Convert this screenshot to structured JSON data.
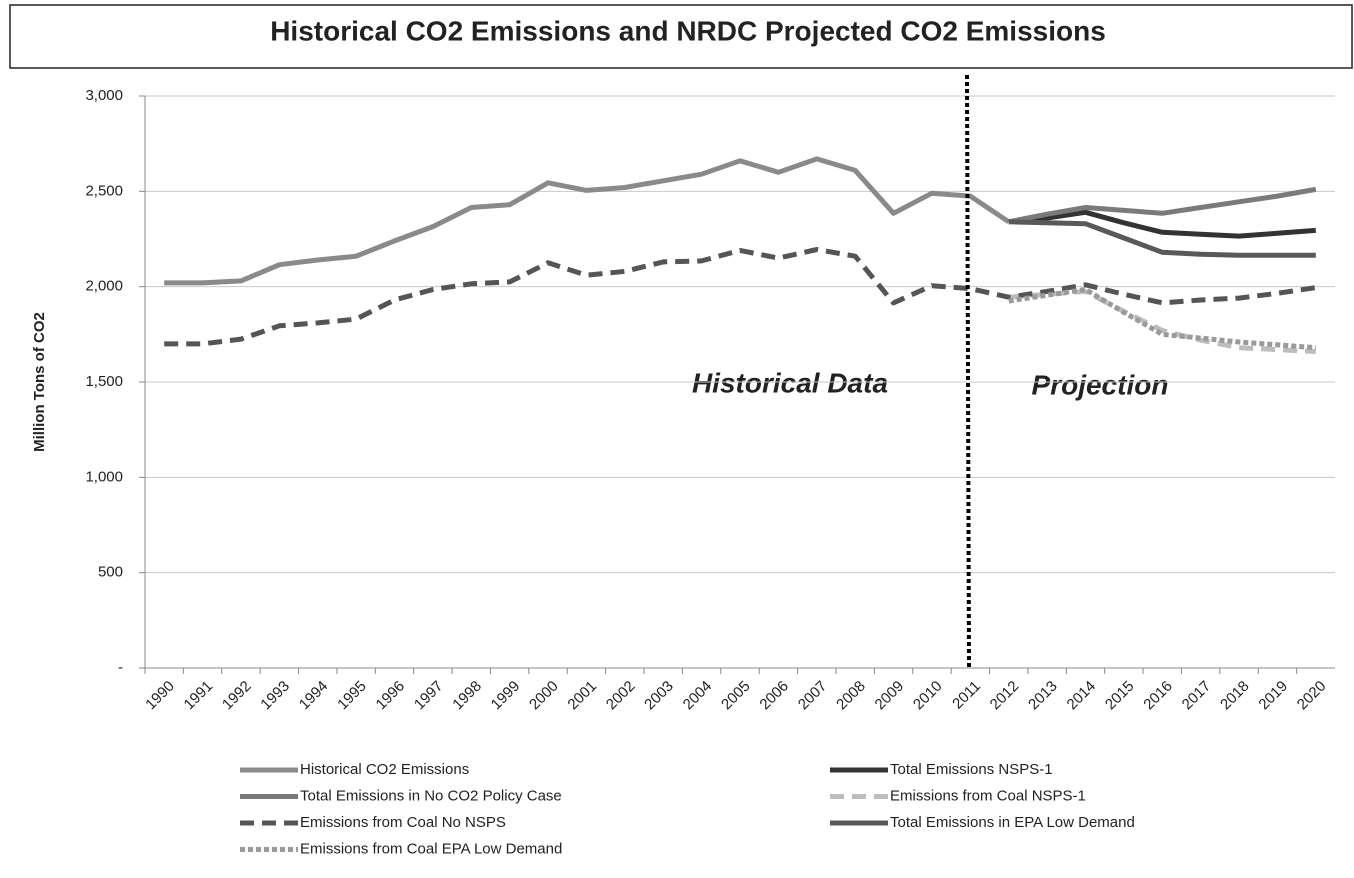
{
  "chart_data": {
    "type": "line",
    "title": "Historical  CO2 Emissions and NRDC Projected CO2 Emissions",
    "y_label": "Million Tons of CO2",
    "annotations": [
      "Historical Data",
      "Projection"
    ],
    "categories": [
      "1990",
      "1991",
      "1992",
      "1993",
      "1994",
      "1995",
      "1996",
      "1997",
      "1998",
      "1999",
      "2000",
      "2001",
      "2002",
      "2003",
      "2004",
      "2005",
      "2006",
      "2007",
      "2008",
      "2009",
      "2010",
      "2011",
      "2012",
      "2013",
      "2014",
      "2015",
      "2016",
      "2017",
      "2018",
      "2019",
      "2020"
    ],
    "ylim": [
      0,
      3000
    ],
    "yticks": [
      {
        "value": 0,
        "label": "-"
      },
      500,
      {
        "value": 1000,
        "label": "1,000"
      },
      {
        "value": 1500,
        "label": "1,500"
      },
      {
        "value": 2000,
        "label": "2,000"
      },
      {
        "value": 2500,
        "label": "2,500"
      },
      {
        "value": 3000,
        "label": "3,000"
      }
    ],
    "grid": true,
    "legend": "bottom",
    "series": [
      {
        "name": "Historical CO2 Emissions",
        "color": "#8a8a8a",
        "dash": "solid",
        "values": [
          2020,
          2020,
          2030,
          2115,
          2140,
          2160,
          2240,
          2315,
          2415,
          2430,
          2545,
          2505,
          2520,
          2555,
          2590,
          2660,
          2600,
          2670,
          2610,
          2385,
          2490,
          2475,
          2340,
          null,
          null,
          null,
          null,
          null,
          null,
          null,
          null
        ]
      },
      {
        "name": "Total Emissions NSPS-1",
        "color": "#333333",
        "dash": "solid",
        "values": [
          null,
          null,
          null,
          null,
          null,
          null,
          null,
          null,
          null,
          null,
          null,
          null,
          null,
          null,
          null,
          null,
          null,
          null,
          null,
          null,
          null,
          null,
          2340,
          2360,
          2390,
          2335,
          2285,
          2275,
          2265,
          2280,
          2295
        ]
      },
      {
        "name": "Total Emissions in No CO2 Policy Case",
        "color": "#7a7a7a",
        "dash": "solid",
        "values": [
          null,
          null,
          null,
          null,
          null,
          null,
          null,
          null,
          null,
          null,
          null,
          null,
          null,
          null,
          null,
          null,
          null,
          null,
          null,
          null,
          null,
          null,
          2340,
          2380,
          2415,
          2400,
          2385,
          2415,
          2445,
          2475,
          2510
        ]
      },
      {
        "name": "Emissions from Coal NSPS-1",
        "color": "#bdbdbd",
        "dash": "dashed",
        "values": [
          null,
          null,
          null,
          null,
          null,
          null,
          null,
          null,
          null,
          null,
          null,
          null,
          null,
          null,
          null,
          null,
          null,
          null,
          null,
          null,
          null,
          null,
          1945,
          1960,
          1975,
          1870,
          1770,
          1720,
          1680,
          1670,
          1660
        ]
      },
      {
        "name": "Emissions from Coal No NSPS",
        "color": "#555555",
        "dash": "dashed",
        "values": [
          1700,
          1700,
          1725,
          1795,
          1810,
          1830,
          1930,
          1985,
          2015,
          2025,
          2125,
          2060,
          2080,
          2130,
          2135,
          2190,
          2150,
          2195,
          2160,
          1915,
          2005,
          1990,
          1945,
          1975,
          2010,
          1960,
          1915,
          1930,
          1940,
          1965,
          1995
        ]
      },
      {
        "name": "Total Emissions in EPA Low Demand",
        "color": "#595959",
        "dash": "solid",
        "values": [
          null,
          null,
          null,
          null,
          null,
          null,
          null,
          null,
          null,
          null,
          null,
          null,
          null,
          null,
          null,
          null,
          null,
          null,
          null,
          null,
          null,
          null,
          2340,
          2335,
          2330,
          2255,
          2180,
          2170,
          2165,
          2165,
          2165
        ]
      },
      {
        "name": "Emissions from Coal EPA Low Demand",
        "color": "#9a9a9a",
        "dash": "dotted",
        "values": [
          null,
          null,
          null,
          null,
          null,
          null,
          null,
          null,
          null,
          null,
          null,
          null,
          null,
          null,
          null,
          null,
          null,
          null,
          null,
          null,
          null,
          null,
          1925,
          1955,
          1985,
          1865,
          1750,
          1730,
          1710,
          1695,
          1680
        ]
      }
    ]
  }
}
